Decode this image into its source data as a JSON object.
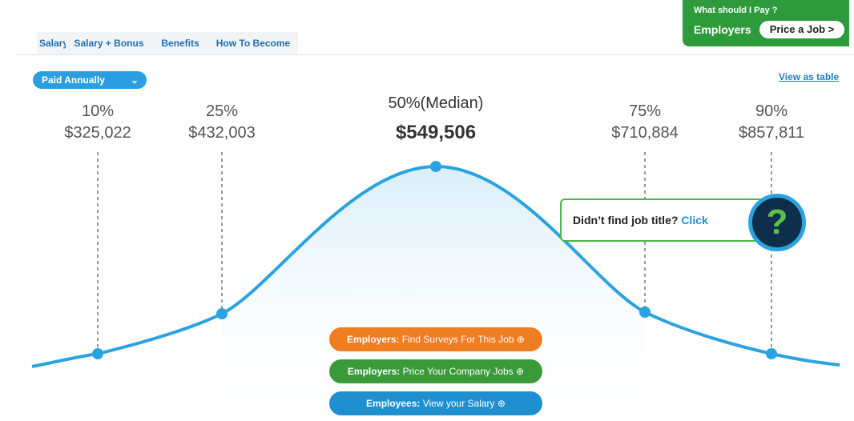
{
  "tabs": [
    "Salary",
    "Salary + Bonus",
    "Benefits",
    "How To Become"
  ],
  "promo": {
    "question": "What should I Pay ?",
    "label": "Employers",
    "button": "Price a Job >"
  },
  "pay_period": "Paid Annually",
  "view_link": "View as table",
  "percentiles": [
    {
      "label": "10%",
      "value": "$325,022"
    },
    {
      "label": "25%",
      "value": "$432,003"
    },
    {
      "label": "50%(Median)",
      "value": "$549,506"
    },
    {
      "label": "75%",
      "value": "$710,884"
    },
    {
      "label": "90%",
      "value": "$857,811"
    }
  ],
  "help": {
    "text": "Didn’t find job title?",
    "link": "Click",
    "icon": "?"
  },
  "buttons": [
    {
      "prefix": "Employers:",
      "text": "Find Surveys For This Job"
    },
    {
      "prefix": "Employers:",
      "text": "Price Your Company Jobs"
    },
    {
      "prefix": "Employees:",
      "text": "View your Salary"
    }
  ]
}
